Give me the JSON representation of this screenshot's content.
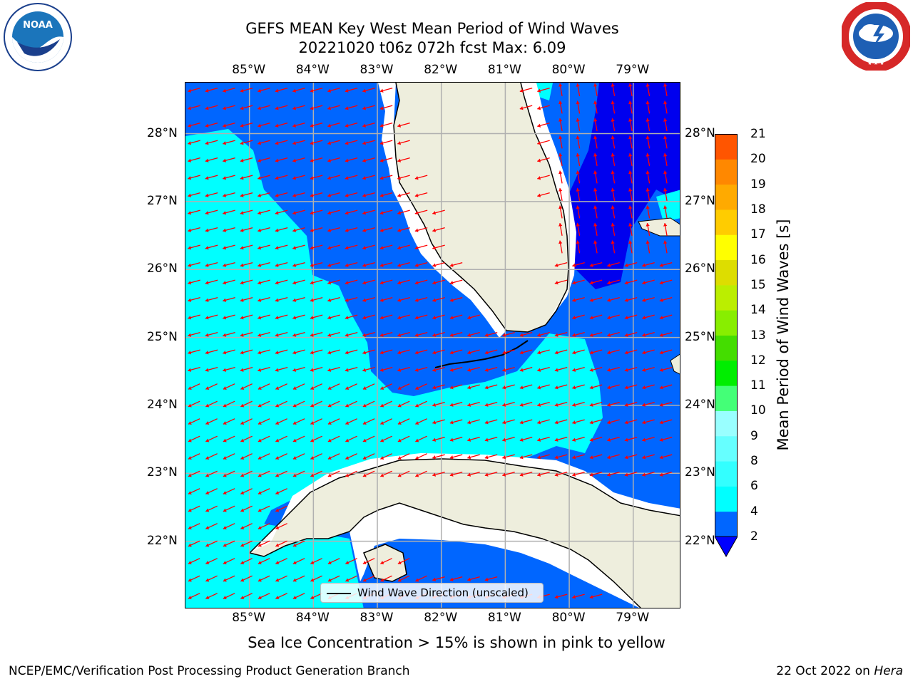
{
  "title": {
    "line1": "GEFS MEAN Key West Mean Period of Wind Waves",
    "line2": "20221020 t06z 072h fcst   Max: 6.09"
  },
  "logos": {
    "left": {
      "text": "NOAA",
      "ring_text": "NATIONAL OCEANIC AND ATMOSPHERIC ADMINISTRATION · U.S. DEPARTMENT OF COMMERCE"
    },
    "right": {
      "ring_text": "NATIONAL WEATHER SERVICE"
    }
  },
  "map": {
    "x_ticks": [
      "85°W",
      "84°W",
      "83°W",
      "82°W",
      "81°W",
      "80°W",
      "79°W"
    ],
    "y_ticks": [
      "28°N",
      "27°N",
      "26°N",
      "25°N",
      "24°N",
      "23°N",
      "22°N"
    ],
    "lon_values": [
      -85,
      -84,
      -83,
      -82,
      -81,
      -80,
      -79
    ],
    "lat_values": [
      28,
      27,
      26,
      25,
      24,
      23,
      22
    ],
    "extent": {
      "lon": [
        -86,
        -78.25
      ],
      "lat": [
        21,
        28.75
      ]
    },
    "land_color": "#eeeedd",
    "arrow_color": "#ff0000",
    "grid_color": "#b0b0b0"
  },
  "legend": {
    "label": "Wind Wave Direction (unscaled)"
  },
  "colorbar": {
    "title": "Mean Period of Wind Waves [s]",
    "labels": [
      "21",
      "20",
      "19",
      "18",
      "17",
      "16",
      "15",
      "14",
      "13",
      "12",
      "11",
      "10",
      "9",
      "8",
      "6",
      "4",
      "2"
    ],
    "levels": [
      2,
      4,
      6,
      8,
      9,
      10,
      11,
      12,
      13,
      14,
      15,
      16,
      17,
      18,
      19,
      20,
      21
    ],
    "colors": [
      "#0066ff",
      "#00ffff",
      "#33ffff",
      "#66ffff",
      "#99ffff",
      "#44ff77",
      "#00ee00",
      "#44dd00",
      "#88ee00",
      "#bbee00",
      "#dddd00",
      "#ffff00",
      "#ffcc00",
      "#ffaa00",
      "#ff8800",
      "#ff5500",
      "#ff2200",
      "#ff0000"
    ],
    "under_color": "#0000ff"
  },
  "subtitle": "Sea Ice Concentration > 15% is shown in pink to yellow",
  "footer": {
    "left": "NCEP/EMC/Verification Post Processing Product Generation Branch",
    "right_prefix": "22 Oct 2022 on",
    "right_host": "Hera"
  }
}
